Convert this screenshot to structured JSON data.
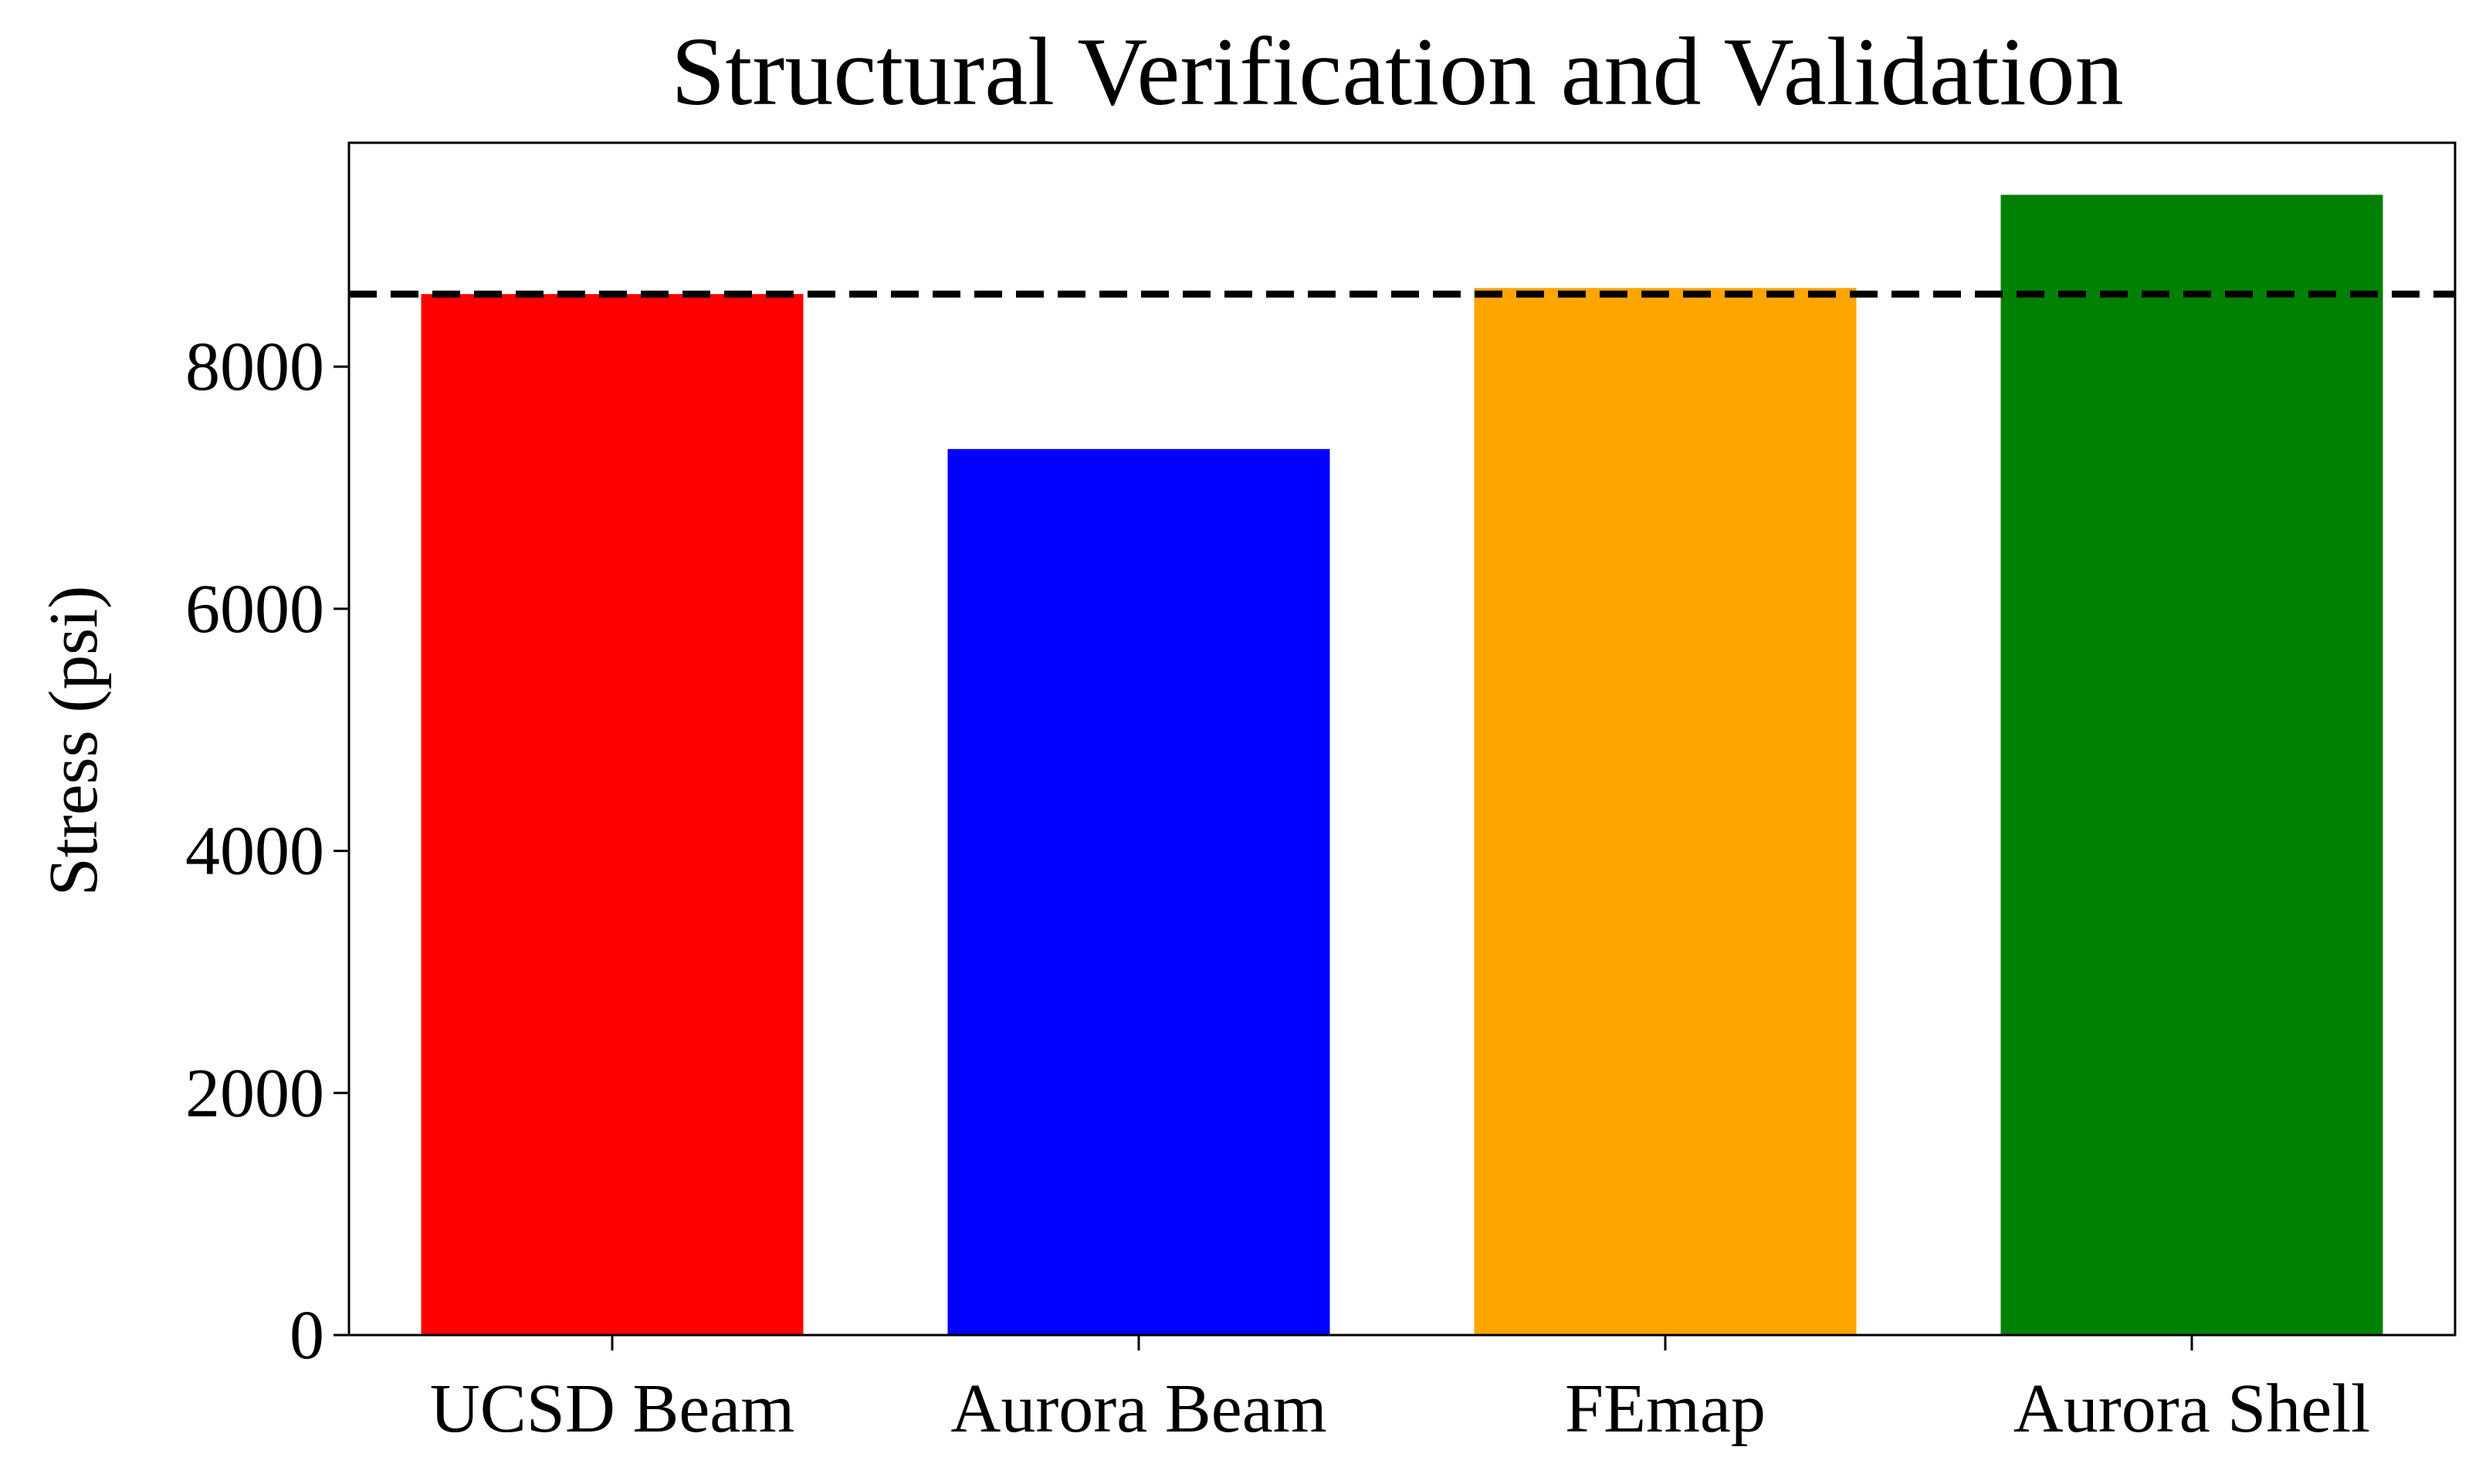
{
  "chart_data": {
    "type": "bar",
    "title": "Structural Verification and Validation",
    "xlabel": "",
    "ylabel": "Stress (psi)",
    "categories": [
      "UCSD Beam",
      "Aurora Beam",
      "FEmap",
      "Aurora Shell"
    ],
    "values": [
      8600,
      7320,
      8650,
      9420
    ],
    "colors": [
      "#ff0000",
      "#0000ff",
      "#ffa500",
      "#008000"
    ],
    "ylim": [
      0,
      9850
    ],
    "yticks": [
      0,
      2000,
      4000,
      6000,
      8000
    ],
    "reference_line": {
      "value": 8600,
      "style": "dashed",
      "color": "#000000"
    },
    "grid": false,
    "legend": "none"
  }
}
